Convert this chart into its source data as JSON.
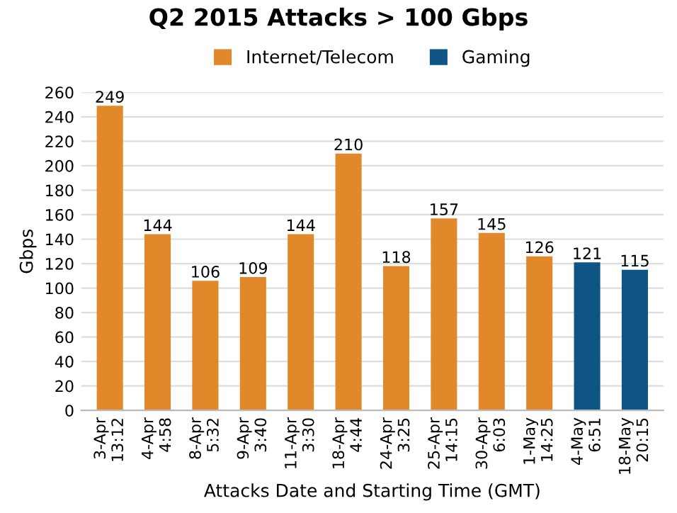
{
  "chart_data": {
    "type": "bar",
    "title": "Q2 2015 Attacks > 100 Gbps",
    "xlabel": "Attacks Date and Starting Time (GMT)",
    "ylabel": "Gbps",
    "categories": [
      "3-Apr\n13:12",
      "4-Apr\n4:58",
      "8-Apr\n5:32",
      "9-Apr\n3:40",
      "11-Apr\n3:30",
      "18-Apr\n4:44",
      "24-Apr\n3:25",
      "25-Apr\n14:15",
      "30-Apr\n6:03",
      "1-May\n14:25",
      "4-May\n6:51",
      "18-May\n20:15"
    ],
    "series": [
      {
        "name": "Internet/Telecom",
        "color": "#e0882a",
        "values": [
          249,
          144,
          106,
          109,
          144,
          210,
          118,
          157,
          145,
          126,
          null,
          null
        ]
      },
      {
        "name": "Gaming",
        "color": "#0e5484",
        "values": [
          null,
          null,
          null,
          null,
          null,
          null,
          null,
          null,
          null,
          null,
          121,
          115
        ]
      }
    ],
    "ylim": [
      0,
      260
    ],
    "yticks": [
      0,
      20,
      40,
      60,
      80,
      100,
      120,
      140,
      160,
      180,
      200,
      220,
      240,
      260
    ],
    "grid": "y",
    "legend": "top",
    "data_labels": true
  }
}
